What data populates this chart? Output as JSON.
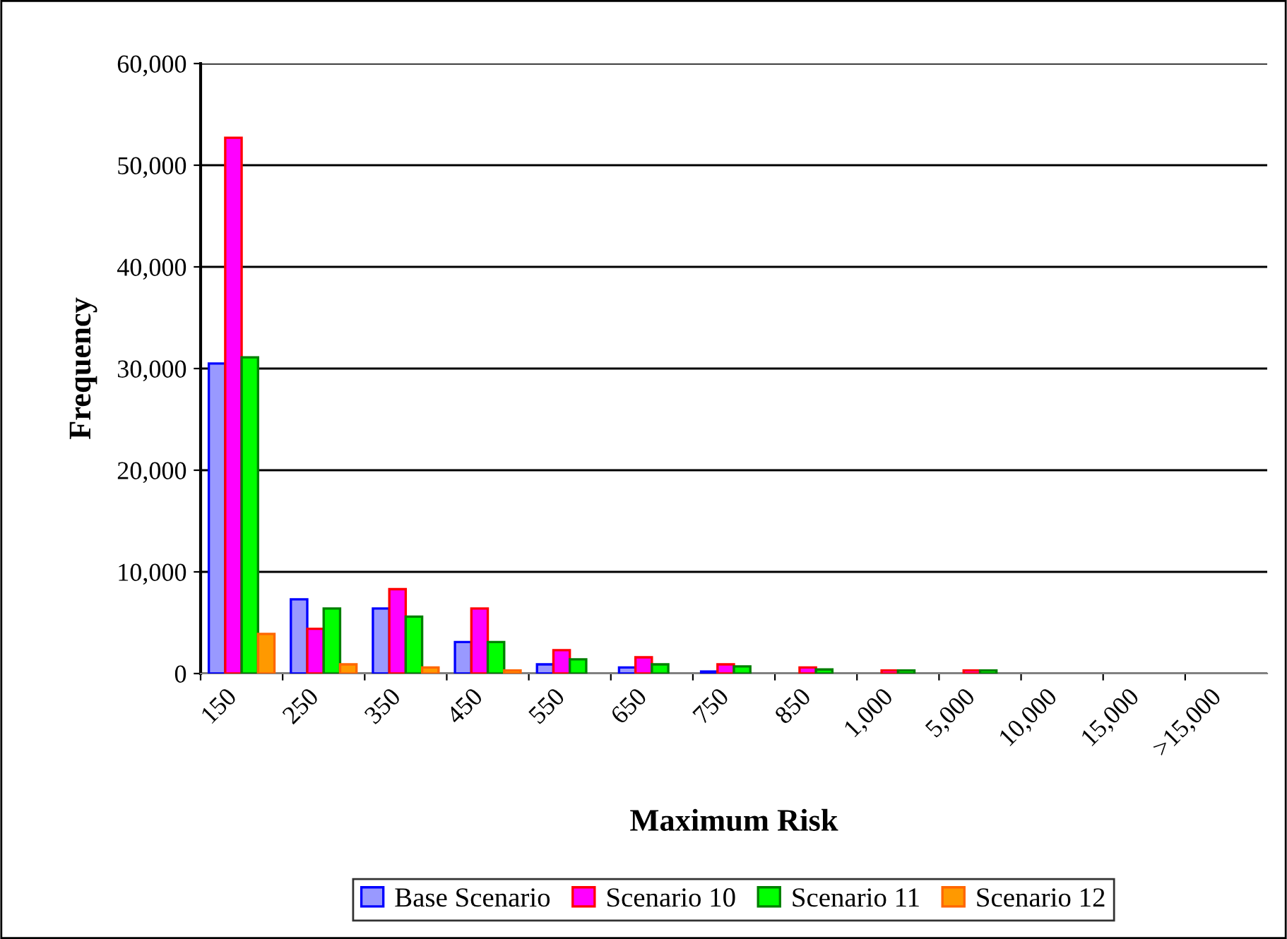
{
  "chart_data": {
    "type": "bar",
    "xlabel": "Maximum Risk",
    "ylabel": "Frequency",
    "categories": [
      "150",
      "250",
      "350",
      "450",
      "550",
      "650",
      "750",
      "850",
      "1,000",
      "5,000",
      "10,000",
      "15,000",
      ">15,000"
    ],
    "series": [
      {
        "name": "Base Scenario",
        "color": "#9999ff",
        "values": [
          30500,
          7300,
          6400,
          3100,
          900,
          600,
          200,
          0,
          0,
          0,
          0,
          0,
          0
        ]
      },
      {
        "name": "Scenario 10",
        "color": "#ff00ff",
        "values": [
          52700,
          4400,
          8300,
          6400,
          2300,
          1600,
          900,
          600,
          300,
          300,
          0,
          0,
          0
        ]
      },
      {
        "name": "Scenario 11",
        "color": "#00ff00",
        "values": [
          31100,
          6400,
          5600,
          3100,
          1400,
          900,
          700,
          400,
          300,
          300,
          0,
          0,
          0
        ]
      },
      {
        "name": "Scenario 12",
        "color": "#ff9900",
        "values": [
          3900,
          900,
          600,
          300,
          0,
          0,
          0,
          0,
          0,
          0,
          0,
          0,
          0
        ]
      }
    ],
    "ylim": [
      0,
      60000
    ],
    "yticks": [
      {
        "value": 0,
        "label": "0"
      },
      {
        "value": 10000,
        "label": "10,000"
      },
      {
        "value": 20000,
        "label": "20,000"
      },
      {
        "value": 30000,
        "label": "30,000"
      },
      {
        "value": 40000,
        "label": "40,000"
      },
      {
        "value": 50000,
        "label": "50,000"
      },
      {
        "value": 60000,
        "label": "60,000"
      }
    ],
    "grid": "y",
    "legend": "bottom"
  }
}
